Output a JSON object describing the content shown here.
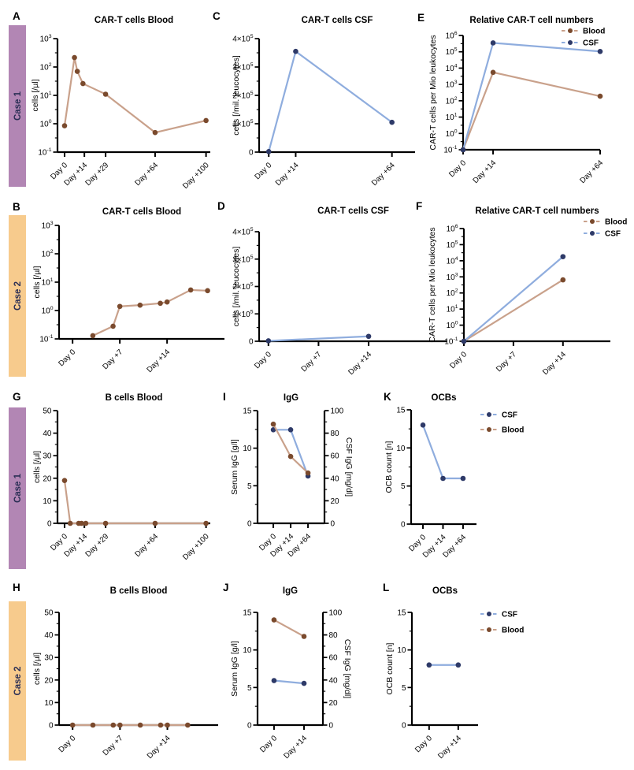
{
  "colors": {
    "blood_line": "#c9a18b",
    "blood_marker": "#7a4a2d",
    "csf_line": "#8fadde",
    "csf_marker": "#2e3a68",
    "axis": "#000000",
    "text": "#000000",
    "case_label": "#2b2f55",
    "case1": "#b286b4",
    "case2": "#f7cb8d"
  },
  "case_bars": [
    {
      "label": "Case 1",
      "color": "#b286b4"
    },
    {
      "label": "Case 2",
      "color": "#f7cb8d"
    },
    {
      "label": "Case 1",
      "color": "#b286b4"
    },
    {
      "label": "Case 2",
      "color": "#f7cb8d"
    }
  ],
  "chart_data": [
    {
      "letter": "A",
      "type": "line",
      "title": "CAR-T cells Blood",
      "ylabel": "cells [/µl]",
      "yscale": "log",
      "ylim": [
        0.1,
        1000
      ],
      "yticks": [
        {
          "v": 0.1,
          "t": "10",
          "s": "-1"
        },
        {
          "v": 1,
          "t": "10",
          "s": "0"
        },
        {
          "v": 10,
          "t": "10",
          "s": "1"
        },
        {
          "v": 100,
          "t": "10",
          "s": "2"
        },
        {
          "v": 1000,
          "t": "10",
          "s": "3"
        }
      ],
      "xlim": [
        -5,
        103
      ],
      "xticks": [
        {
          "l": "Day 0",
          "x": 0
        },
        {
          "l": "Day +14",
          "x": 14
        },
        {
          "l": "Day +29",
          "x": 29
        },
        {
          "l": "Day +64",
          "x": 64
        },
        {
          "l": "Day +100",
          "x": 100
        }
      ],
      "series": [
        {
          "name": "Blood",
          "color": "blood",
          "x": [
            0,
            7,
            9,
            13,
            29,
            64,
            100
          ],
          "y": [
            0.85,
            215,
            70,
            26,
            11,
            0.49,
            1.3
          ]
        }
      ],
      "legend": null
    },
    {
      "letter": "C",
      "type": "line",
      "title": "CAR-T cells CSF",
      "ylabel": "cells [/mil. leucocytes]",
      "yscale": "linear",
      "ylim": [
        0,
        400000
      ],
      "yticks": [
        {
          "v": 0,
          "t": "0"
        },
        {
          "v": 100000,
          "t": "1×10",
          "s": "5"
        },
        {
          "v": 200000,
          "t": "2×10",
          "s": "5"
        },
        {
          "v": 300000,
          "t": "3×10",
          "s": "5"
        },
        {
          "v": 400000,
          "t": "4×10",
          "s": "5"
        }
      ],
      "xlim": [
        -5,
        76
      ],
      "xticks": [
        {
          "l": "Day 0",
          "x": 0
        },
        {
          "l": "Day +14",
          "x": 14
        },
        {
          "l": "Day +64",
          "x": 64
        }
      ],
      "series": [
        {
          "name": "CSF",
          "color": "csf",
          "x": [
            0,
            14,
            64
          ],
          "y": [
            2000,
            355000,
            105000
          ]
        }
      ],
      "legend": null
    },
    {
      "letter": "E",
      "type": "line",
      "title": "Relative CAR-T cell numbers",
      "ylabel": "CAR-T cells per Mio leukocytes",
      "yscale": "log",
      "ylim": [
        0.1,
        1000000
      ],
      "yticks": [
        {
          "v": 0.1,
          "t": "10",
          "s": "-1"
        },
        {
          "v": 1,
          "t": "10",
          "s": "0"
        },
        {
          "v": 10,
          "t": "10",
          "s": "1"
        },
        {
          "v": 100,
          "t": "10",
          "s": "2"
        },
        {
          "v": 1000,
          "t": "10",
          "s": "3"
        },
        {
          "v": 10000,
          "t": "10",
          "s": "4"
        },
        {
          "v": 100000,
          "t": "10",
          "s": "5"
        },
        {
          "v": 1000000,
          "t": "10",
          "s": "6"
        }
      ],
      "xlim": [
        0,
        64
      ],
      "xticks": [
        {
          "l": "Day 0",
          "x": 0
        },
        {
          "l": "Day +14",
          "x": 14
        },
        {
          "l": "Day +64",
          "x": 64
        }
      ],
      "series": [
        {
          "name": "Blood",
          "color": "blood",
          "x": [
            0,
            14,
            64
          ],
          "y": [
            0.1,
            5500,
            190
          ]
        },
        {
          "name": "CSF",
          "color": "csf",
          "x": [
            0,
            14,
            64
          ],
          "y": [
            0.1,
            350000,
            105000
          ]
        }
      ],
      "legend": [
        {
          "name": "Blood",
          "color": "blood"
        },
        {
          "name": "CSF",
          "color": "csf"
        }
      ]
    },
    {
      "letter": "B",
      "type": "line",
      "title": "CAR-T cells Blood",
      "ylabel": "cells [/µl]",
      "yscale": "log",
      "ylim": [
        0.1,
        1000
      ],
      "yticks": [
        {
          "v": 0.1,
          "t": "10",
          "s": "-1"
        },
        {
          "v": 1,
          "t": "10",
          "s": "0"
        },
        {
          "v": 10,
          "t": "10",
          "s": "1"
        },
        {
          "v": 100,
          "t": "10",
          "s": "2"
        },
        {
          "v": 1000,
          "t": "10",
          "s": "3"
        }
      ],
      "xlim": [
        -2,
        22.5
      ],
      "xticks": [
        {
          "l": "Day 0",
          "x": 0
        },
        {
          "l": "Day +7",
          "x": 7
        },
        {
          "l": "Day +14",
          "x": 14
        }
      ],
      "series": [
        {
          "name": "Blood",
          "color": "blood",
          "x": [
            3,
            6,
            7,
            10,
            13,
            14,
            17.5,
            20
          ],
          "y": [
            0.13,
            0.28,
            1.4,
            1.55,
            1.8,
            2.0,
            5.3,
            5.0
          ]
        }
      ],
      "legend": null
    },
    {
      "letter": "D",
      "type": "line",
      "title": "CAR-T cells CSF",
      "ylabel": "cells [/mil. leucocytes]",
      "yscale": "linear",
      "ylim": [
        0,
        400000
      ],
      "yticks": [
        {
          "v": 0,
          "t": "0"
        },
        {
          "v": 100000,
          "t": "1×10",
          "s": "5"
        },
        {
          "v": 200000,
          "t": "2×10",
          "s": "5"
        },
        {
          "v": 300000,
          "t": "3×10",
          "s": "5"
        },
        {
          "v": 400000,
          "t": "4×10",
          "s": "5"
        }
      ],
      "xlim": [
        -1.3,
        25
      ],
      "xticks": [
        {
          "l": "Day 0",
          "x": 0
        },
        {
          "l": "Day +7",
          "x": 7
        },
        {
          "l": "Day +14",
          "x": 14
        }
      ],
      "series": [
        {
          "name": "CSF",
          "color": "csf",
          "x": [
            0,
            14
          ],
          "y": [
            1500,
            18000
          ]
        }
      ],
      "legend": null
    },
    {
      "letter": "F",
      "type": "line",
      "title": "Relative CAR-T cell numbers",
      "ylabel": "CAR-T cells per Mio leukocytes",
      "yscale": "log",
      "ylim": [
        0.1,
        1000000
      ],
      "yticks": [
        {
          "v": 0.1,
          "t": "10",
          "s": "-1"
        },
        {
          "v": 1,
          "t": "10",
          "s": "0"
        },
        {
          "v": 10,
          "t": "10",
          "s": "1"
        },
        {
          "v": 100,
          "t": "10",
          "s": "2"
        },
        {
          "v": 1000,
          "t": "10",
          "s": "3"
        },
        {
          "v": 10000,
          "t": "10",
          "s": "4"
        },
        {
          "v": 100000,
          "t": "10",
          "s": "5"
        },
        {
          "v": 1000000,
          "t": "10",
          "s": "6"
        }
      ],
      "xlim": [
        0,
        20.7
      ],
      "xticks": [
        {
          "l": "Day 0",
          "x": 0
        },
        {
          "l": "Day +7",
          "x": 7
        },
        {
          "l": "Day +14",
          "x": 14
        }
      ],
      "series": [
        {
          "name": "Blood",
          "color": "blood",
          "x": [
            0,
            14
          ],
          "y": [
            0.1,
            650
          ]
        },
        {
          "name": "CSF",
          "color": "csf",
          "x": [
            0,
            14
          ],
          "y": [
            0.1,
            18000
          ]
        }
      ],
      "legend": [
        {
          "name": "Blood",
          "color": "blood"
        },
        {
          "name": "CSF",
          "color": "csf"
        }
      ]
    },
    {
      "letter": "G",
      "type": "line",
      "title": "B cells Blood",
      "ylabel": "cells [/µl]",
      "yscale": "linear",
      "ylim": [
        0,
        50
      ],
      "yticks": [
        {
          "v": 0,
          "t": "0"
        },
        {
          "v": 10,
          "t": "10"
        },
        {
          "v": 20,
          "t": "20"
        },
        {
          "v": 30,
          "t": "30"
        },
        {
          "v": 40,
          "t": "40"
        },
        {
          "v": 50,
          "t": "50"
        }
      ],
      "xlim": [
        -5,
        103
      ],
      "xticks": [
        {
          "l": "Day 0",
          "x": 0
        },
        {
          "l": "Day +14",
          "x": 14
        },
        {
          "l": "Day +29",
          "x": 29
        },
        {
          "l": "Day +64",
          "x": 64
        },
        {
          "l": "Day +100",
          "x": 100
        }
      ],
      "series": [
        {
          "name": "Blood",
          "color": "blood",
          "x": [
            0,
            4,
            10,
            12,
            15,
            29,
            64,
            100
          ],
          "y": [
            19,
            0,
            0,
            0,
            0,
            0,
            0,
            0
          ]
        }
      ],
      "legend": null
    },
    {
      "letter": "I",
      "type": "line",
      "title": "IgG",
      "ylabel": "Serum IgG [g/l]",
      "yscale": "linear",
      "ylim": [
        0,
        15
      ],
      "yticks": [
        {
          "v": 0,
          "t": "0"
        },
        {
          "v": 5,
          "t": "5"
        },
        {
          "v": 10,
          "t": "10"
        },
        {
          "v": 15,
          "t": "15"
        }
      ],
      "right": {
        "ylabel": "CSF IgG [mg/dl]",
        "ylim": [
          0,
          100
        ],
        "yticks": [
          {
            "v": 0,
            "t": "0"
          },
          {
            "v": 20,
            "t": "20"
          },
          {
            "v": 40,
            "t": "40"
          },
          {
            "v": 60,
            "t": "60"
          },
          {
            "v": 80,
            "t": "80"
          },
          {
            "v": 100,
            "t": "100"
          }
        ]
      },
      "xlim": [
        -0.91,
        2.95
      ],
      "xticks": [
        {
          "l": "Day 0",
          "x": 0
        },
        {
          "l": "Day +14",
          "x": 1
        },
        {
          "l": "Day +64",
          "x": 2
        }
      ],
      "series": [
        {
          "name": "CSF",
          "color": "csf",
          "axis": "right",
          "x": [
            0,
            1,
            2
          ],
          "y": [
            83,
            83,
            42
          ]
        },
        {
          "name": "Blood",
          "color": "blood",
          "x": [
            0,
            1,
            2
          ],
          "y": [
            13.2,
            8.9,
            6.7
          ]
        }
      ],
      "legend": null
    },
    {
      "letter": "K",
      "type": "line",
      "title": "OCBs",
      "ylabel": "OCB count [n]",
      "yscale": "linear",
      "ylim": [
        0,
        15
      ],
      "yticks": [
        {
          "v": 0,
          "t": "0"
        },
        {
          "v": 5,
          "t": "5"
        },
        {
          "v": 10,
          "t": "10"
        },
        {
          "v": 15,
          "t": "15"
        }
      ],
      "xlim": [
        -0.59,
        2.67
      ],
      "xticks": [
        {
          "l": "Day 0",
          "x": 0
        },
        {
          "l": "Day +14",
          "x": 1
        },
        {
          "l": "Day +64",
          "x": 2
        }
      ],
      "series": [
        {
          "name": "CSF",
          "color": "csf",
          "x": [
            0,
            1,
            2
          ],
          "y": [
            13,
            6,
            6
          ]
        },
        {
          "name": "Blood",
          "color": "blood",
          "x": [],
          "y": []
        }
      ],
      "legend": [
        {
          "name": "CSF",
          "color": "csf"
        },
        {
          "name": "Blood",
          "color": "blood"
        }
      ]
    },
    {
      "letter": "H",
      "type": "line",
      "title": "B cells Blood",
      "ylabel": "cells [/µl]",
      "yscale": "linear",
      "ylim": [
        0,
        50
      ],
      "yticks": [
        {
          "v": 0,
          "t": "0"
        },
        {
          "v": 10,
          "t": "10"
        },
        {
          "v": 20,
          "t": "20"
        },
        {
          "v": 30,
          "t": "30"
        },
        {
          "v": 40,
          "t": "40"
        },
        {
          "v": 50,
          "t": "50"
        }
      ],
      "xlim": [
        -2,
        21.5
      ],
      "xticks": [
        {
          "l": "Day 0",
          "x": 0
        },
        {
          "l": "Day +7",
          "x": 7
        },
        {
          "l": "Day +14",
          "x": 14
        }
      ],
      "series": [
        {
          "name": "Blood",
          "color": "blood",
          "x": [
            0,
            3,
            6,
            7,
            10,
            13,
            14,
            17
          ],
          "y": [
            0,
            0,
            0,
            0,
            0,
            0,
            0,
            0
          ]
        }
      ],
      "legend": null
    },
    {
      "letter": "J",
      "type": "line",
      "title": "IgG",
      "ylabel": "Serum IgG [g/l]",
      "yscale": "linear",
      "ylim": [
        0,
        15
      ],
      "yticks": [
        {
          "v": 0,
          "t": "0"
        },
        {
          "v": 5,
          "t": "5"
        },
        {
          "v": 10,
          "t": "10"
        },
        {
          "v": 15,
          "t": "15"
        }
      ],
      "right": {
        "ylabel": "CSF IgG [mg/dl]",
        "ylim": [
          0,
          100
        ],
        "yticks": [
          {
            "v": 0,
            "t": "0"
          },
          {
            "v": 20,
            "t": "20"
          },
          {
            "v": 40,
            "t": "40"
          },
          {
            "v": 60,
            "t": "60"
          },
          {
            "v": 80,
            "t": "80"
          },
          {
            "v": 100,
            "t": "100"
          }
        ]
      },
      "xlim": [
        -0.55,
        1.63
      ],
      "xticks": [
        {
          "l": "Day 0",
          "x": 0
        },
        {
          "l": "Day +14",
          "x": 1
        }
      ],
      "series": [
        {
          "name": "CSF",
          "color": "csf",
          "axis": "right",
          "x": [
            0,
            1
          ],
          "y": [
            39.5,
            37
          ]
        },
        {
          "name": "Blood",
          "color": "blood",
          "x": [
            0,
            1
          ],
          "y": [
            14,
            11.8
          ]
        }
      ],
      "legend": null
    },
    {
      "letter": "L",
      "type": "line",
      "title": "OCBs",
      "ylabel": "OCB count [n]",
      "yscale": "linear",
      "ylim": [
        0,
        15
      ],
      "yticks": [
        {
          "v": 0,
          "t": "0"
        },
        {
          "v": 5,
          "t": "5"
        },
        {
          "v": 10,
          "t": "10"
        },
        {
          "v": 15,
          "t": "15"
        }
      ],
      "xlim": [
        -0.59,
        1.68
      ],
      "xticks": [
        {
          "l": "Day 0",
          "x": 0
        },
        {
          "l": "Day +14",
          "x": 1
        }
      ],
      "series": [
        {
          "name": "CSF",
          "color": "csf",
          "x": [
            0,
            1
          ],
          "y": [
            8,
            8
          ]
        },
        {
          "name": "Blood",
          "color": "blood",
          "x": [],
          "y": []
        }
      ],
      "legend": [
        {
          "name": "CSF",
          "color": "csf"
        },
        {
          "name": "Blood",
          "color": "blood"
        }
      ]
    }
  ]
}
